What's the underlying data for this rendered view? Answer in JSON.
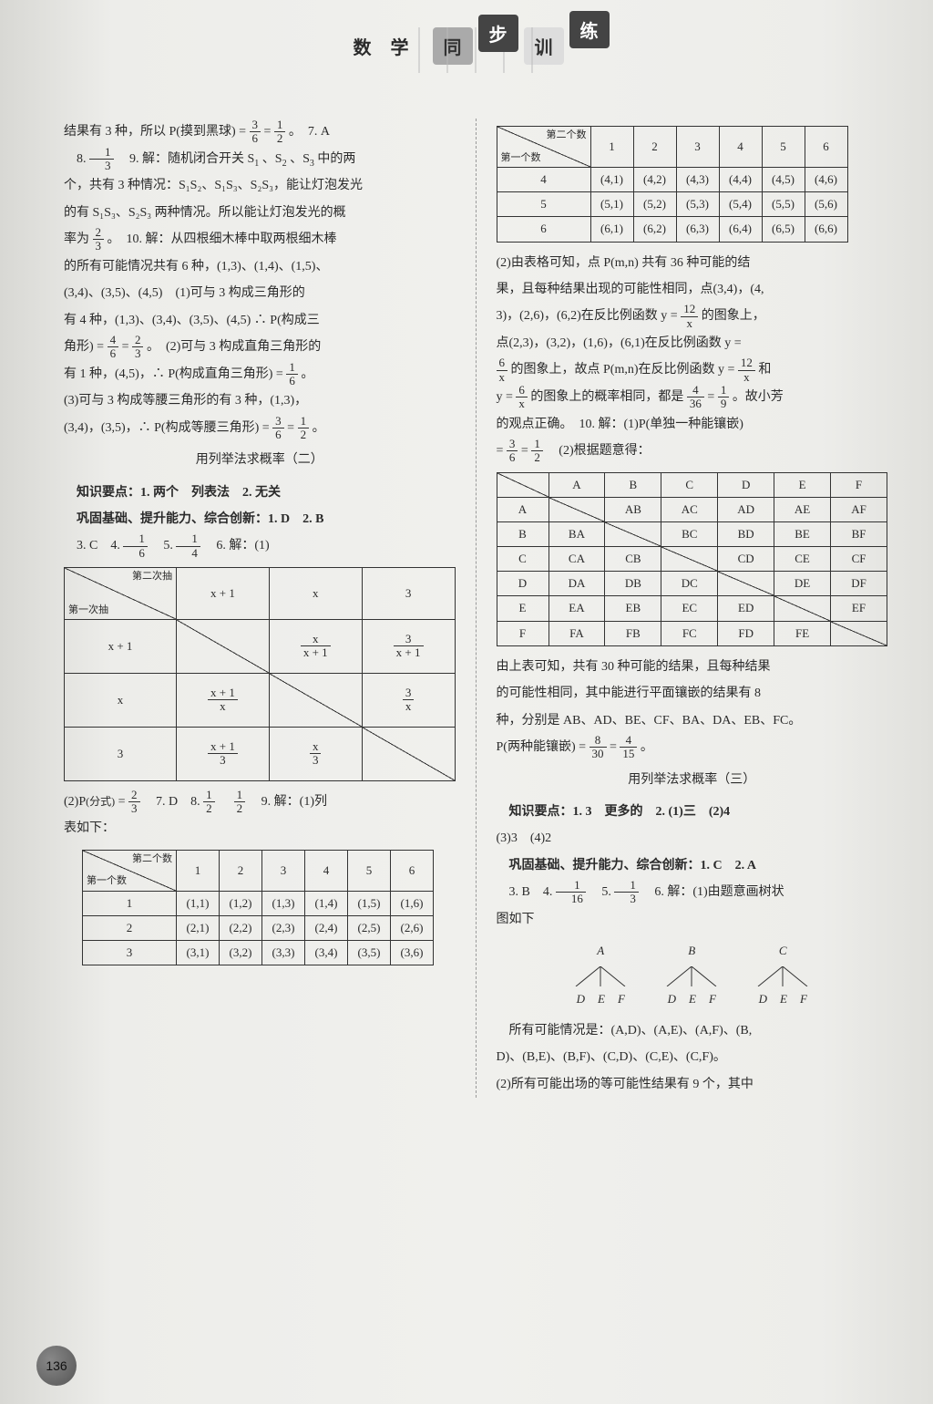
{
  "header": {
    "plain": "数 学",
    "t1": "同",
    "t2": "步",
    "t3": "训",
    "t4": "练"
  },
  "left": {
    "p1a": "结果有 3 种，所以 P(摸到黑球) = ",
    "p1b": "。　7. A",
    "p2a": "8. ",
    "p2b": "　9. 解：随机闭合开关 S",
    "p2c": "、S",
    "p2d": "、S",
    "p2e": " 中的两",
    "p3": "个，共有 3 种情况：S₁S₂、S₁S₃、S₂S₃，能让灯泡发光",
    "p4a": "的有 S₁S₃、S₂S₃ 两种情况。所以能让灯泡发光的概",
    "p4b": "率为",
    "p4c": "。　10. 解：从四根细木棒中取两根细木棒",
    "p5": "的所有可能情况共有 6 种，(1,3)、(1,4)、(1,5)、",
    "p6": "(3,4)、(3,5)、(4,5)　(1)可与 3 构成三角形的",
    "p7a": "有 4 种，(1,3)、(3,4)、(3,5)、(4,5) ∴ P(构成三",
    "p7b": "角形) = ",
    "p7c": "。　(2)可与 3 构成直角三角形的",
    "p8a": "有 1 种，(4,5)，∴ P(构成直角三角形) = ",
    "p8b": "。",
    "p9": "(3)可与 3 构成等腰三角形的有 3 种，(1,3)，",
    "p10a": "(3,4)，(3,5)，∴ P(构成等腰三角形) = ",
    "p10b": "。",
    "sec2_title": "用列举法求概率（二）",
    "sec2_kp": "知识要点：1. 两个　列表法　2. 无关",
    "sec2_q": "巩固基础、提升能力、综合创新：1. D　2. B",
    "sec2_q2a": "3. C　4. ",
    "sec2_q2b": "　5. ",
    "sec2_q2c": "　6. 解：(1)",
    "tbl1": {
      "diag_tl": "第一次抽",
      "diag_br": "第二次抽",
      "cols": [
        "x + 1",
        "x",
        "3"
      ],
      "rows": [
        "x + 1",
        "x",
        "3"
      ],
      "cells": [
        [
          "",
          "x|x + 1",
          "3|x + 1"
        ],
        [
          "x + 1|x",
          "",
          "3|x"
        ],
        [
          "x + 1|3",
          "x|3",
          ""
        ]
      ]
    },
    "p11a": "(2)P",
    "p11s": "(分式)",
    "p11b": " = ",
    "p11c": "　7. D　8. ",
    "p11d": "　",
    "p11e": "　9. 解：(1)列",
    "p12": "表如下：",
    "tbl2": {
      "diag_tl": "第一个数",
      "diag_br": "第二个数",
      "cols": [
        "1",
        "2",
        "3",
        "4",
        "5",
        "6"
      ],
      "rows": [
        "1",
        "2",
        "3"
      ],
      "cells": [
        [
          "(1,1)",
          "(1,2)",
          "(1,3)",
          "(1,4)",
          "(1,5)",
          "(1,6)"
        ],
        [
          "(2,1)",
          "(2,2)",
          "(2,3)",
          "(2,4)",
          "(2,5)",
          "(2,6)"
        ],
        [
          "(3,1)",
          "(3,2)",
          "(3,3)",
          "(3,4)",
          "(3,5)",
          "(3,6)"
        ]
      ]
    }
  },
  "right": {
    "tbl3": {
      "diag_tl": "第一个数",
      "diag_br": "第二个数",
      "cols": [
        "1",
        "2",
        "3",
        "4",
        "5",
        "6"
      ],
      "rows": [
        "4",
        "5",
        "6"
      ],
      "cells": [
        [
          "(4,1)",
          "(4,2)",
          "(4,3)",
          "(4,4)",
          "(4,5)",
          "(4,6)"
        ],
        [
          "(5,1)",
          "(5,2)",
          "(5,3)",
          "(5,4)",
          "(5,5)",
          "(5,6)"
        ],
        [
          "(6,1)",
          "(6,2)",
          "(6,3)",
          "(6,4)",
          "(6,5)",
          "(6,6)"
        ]
      ]
    },
    "r1": "(2)由表格可知，点 P(m,n) 共有 36 种可能的结",
    "r2": "果，且每种结果出现的可能性相同，点(3,4)，(4,",
    "r3a": "3)，(2,6)，(6,2)在反比例函数 y = ",
    "r3b": "的图象上，",
    "r4": "点(2,3)，(3,2)，(1,6)，(6,1)在反比例函数 y =",
    "r5a": "",
    "r5b": "的图象上，故点 P(m,n)在反比例函数 y = ",
    "r5c": "和",
    "r6a": "y = ",
    "r6b": "的图象上的概率相同，都是",
    "r6c": "。故小芳",
    "r7": "的观点正确。　10. 解：(1)P(单独一种能镶嵌)",
    "r8a": "= ",
    "r8b": "　(2)根据题意得：",
    "tbl4": {
      "cols": [
        "",
        "A",
        "B",
        "C",
        "D",
        "E",
        "F"
      ],
      "rows": [
        "A",
        "B",
        "C",
        "D",
        "E",
        "F"
      ],
      "cells": [
        [
          "",
          "AB",
          "AC",
          "AD",
          "AE",
          "AF"
        ],
        [
          "BA",
          "",
          "BC",
          "BD",
          "BE",
          "BF"
        ],
        [
          "CA",
          "CB",
          "",
          "CD",
          "CE",
          "CF"
        ],
        [
          "DA",
          "DB",
          "DC",
          "",
          "DE",
          "DF"
        ],
        [
          "EA",
          "EB",
          "EC",
          "ED",
          "",
          "EF"
        ],
        [
          "FA",
          "FB",
          "FC",
          "FD",
          "FE",
          ""
        ]
      ]
    },
    "r9": "由上表可知，共有 30 种可能的结果，且每种结果",
    "r10": "的可能性相同，其中能进行平面镶嵌的结果有 8",
    "r11": "种，分别是 AB、AD、BE、CF、BA、DA、EB、FC。",
    "r12a": "P(两种能镶嵌) = ",
    "r12b": "。",
    "sec3_title": "用列举法求概率（三）",
    "sec3_kp": "知识要点：1. 3　更多的　2. (1)三　(2)4",
    "sec3_kp2": "(3)3　(4)2",
    "sec3_q": "巩固基础、提升能力、综合创新：1. C　2. A",
    "sec3_q2a": "3. B　4. ",
    "sec3_q2b": "　5. ",
    "sec3_q2c": "　6. 解：(1)由题意画树状",
    "r13": "图如下",
    "tree": {
      "roots": [
        "A",
        "B",
        "C"
      ],
      "leaves": [
        "D",
        "E",
        "F"
      ]
    },
    "r14": "所有可能情况是：(A,D)、(A,E)、(A,F)、(B,",
    "r15": "D)、(B,E)、(B,F)、(C,D)、(C,E)、(C,F)。",
    "r16": "(2)所有可能出场的等可能性结果有 9 个，其中"
  },
  "fracs": {
    "f36": {
      "n": "3",
      "d": "6"
    },
    "f12": {
      "n": "1",
      "d": "2"
    },
    "f13": {
      "n": "1",
      "d": "3"
    },
    "f23": {
      "n": "2",
      "d": "3"
    },
    "f46": {
      "n": "4",
      "d": "6"
    },
    "f16": {
      "n": "1",
      "d": "6"
    },
    "f14": {
      "n": "1",
      "d": "4"
    },
    "f12x": {
      "n": "12",
      "d": "x"
    },
    "f6x": {
      "n": "6",
      "d": "x"
    },
    "f436": {
      "n": "4",
      "d": "36"
    },
    "f19": {
      "n": "1",
      "d": "9"
    },
    "f830": {
      "n": "8",
      "d": "30"
    },
    "f415": {
      "n": "4",
      "d": "15"
    },
    "f116": {
      "n": "1",
      "d": "16"
    }
  },
  "pagenum": "136"
}
